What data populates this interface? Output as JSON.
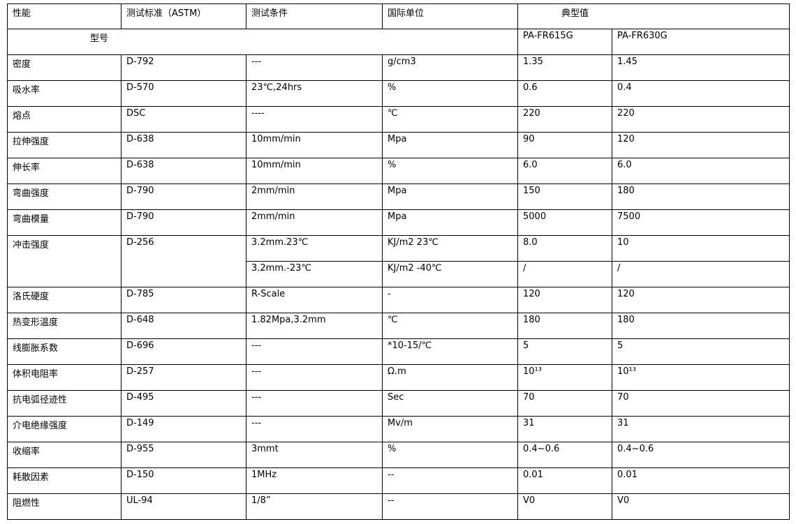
{
  "header": [
    "性能",
    "测试标准（ASTM）",
    "测试条件",
    "国际单位",
    "典型值"
  ],
  "model_row": {
    "label": "型号",
    "models": [
      "PA-FR615G",
      "PA-FR630G"
    ]
  },
  "rows": [
    [
      "密度",
      "D-792",
      "---",
      "g/cm3",
      "1.35",
      "1.45"
    ],
    [
      "吸水率",
      "D-570",
      "23℃,24hrs",
      "%",
      "0.6",
      "0.4"
    ],
    [
      "熔点",
      "DSC",
      "----",
      "℃",
      "220",
      "220"
    ],
    [
      "拉伸强度",
      "D-638",
      "10mm/min",
      "Mpa",
      "90",
      "120"
    ],
    [
      "伸长率",
      "D-638",
      "10mm/min",
      "%",
      "6.0",
      "6.0"
    ],
    [
      "弯曲强度",
      "D-790",
      "2mm/min",
      "Mpa",
      "150",
      "180"
    ],
    [
      "弯曲模量",
      "D-790",
      "2mm/min",
      "Mpa",
      "5000",
      "7500"
    ],
    [
      "冲击强度",
      "D-256",
      "3.2mm.23℃",
      "KJ/m2 23℃",
      "8.0",
      "10"
    ],
    [
      "3.2mm.-23℃",
      "KJ/m2 -40℃",
      "/",
      "/"
    ],
    [
      "洛氏硬度",
      "D-785",
      "R-Scale",
      "-",
      "120",
      "120"
    ],
    [
      "热变形温度",
      "D-648",
      "1.82Mpa,3.2mm",
      "℃",
      "180",
      "180"
    ],
    [
      "线膨胀系数",
      "D-696",
      "---",
      "*10-15/℃",
      "5",
      "5"
    ],
    [
      "体积电阻率",
      "D-257",
      "---",
      "Ω.m",
      "10¹³",
      "10¹³"
    ],
    [
      "抗电弧径迹性",
      "D-495",
      "---",
      "Sec",
      "70",
      "70"
    ],
    [
      "介电绝缘强度",
      "D-149",
      "---",
      "Mv/m",
      "31",
      "31"
    ],
    [
      "收缩率",
      "D-955",
      "3mmt",
      "%",
      "0.4~0.6",
      "0.4~0.6"
    ],
    [
      "耗散因素",
      "D-150",
      "1MHz",
      "--",
      "0.01",
      "0.01"
    ],
    [
      "阻燃性",
      "UL-94",
      "1/8”",
      "--",
      "V0",
      "V0"
    ]
  ]
}
